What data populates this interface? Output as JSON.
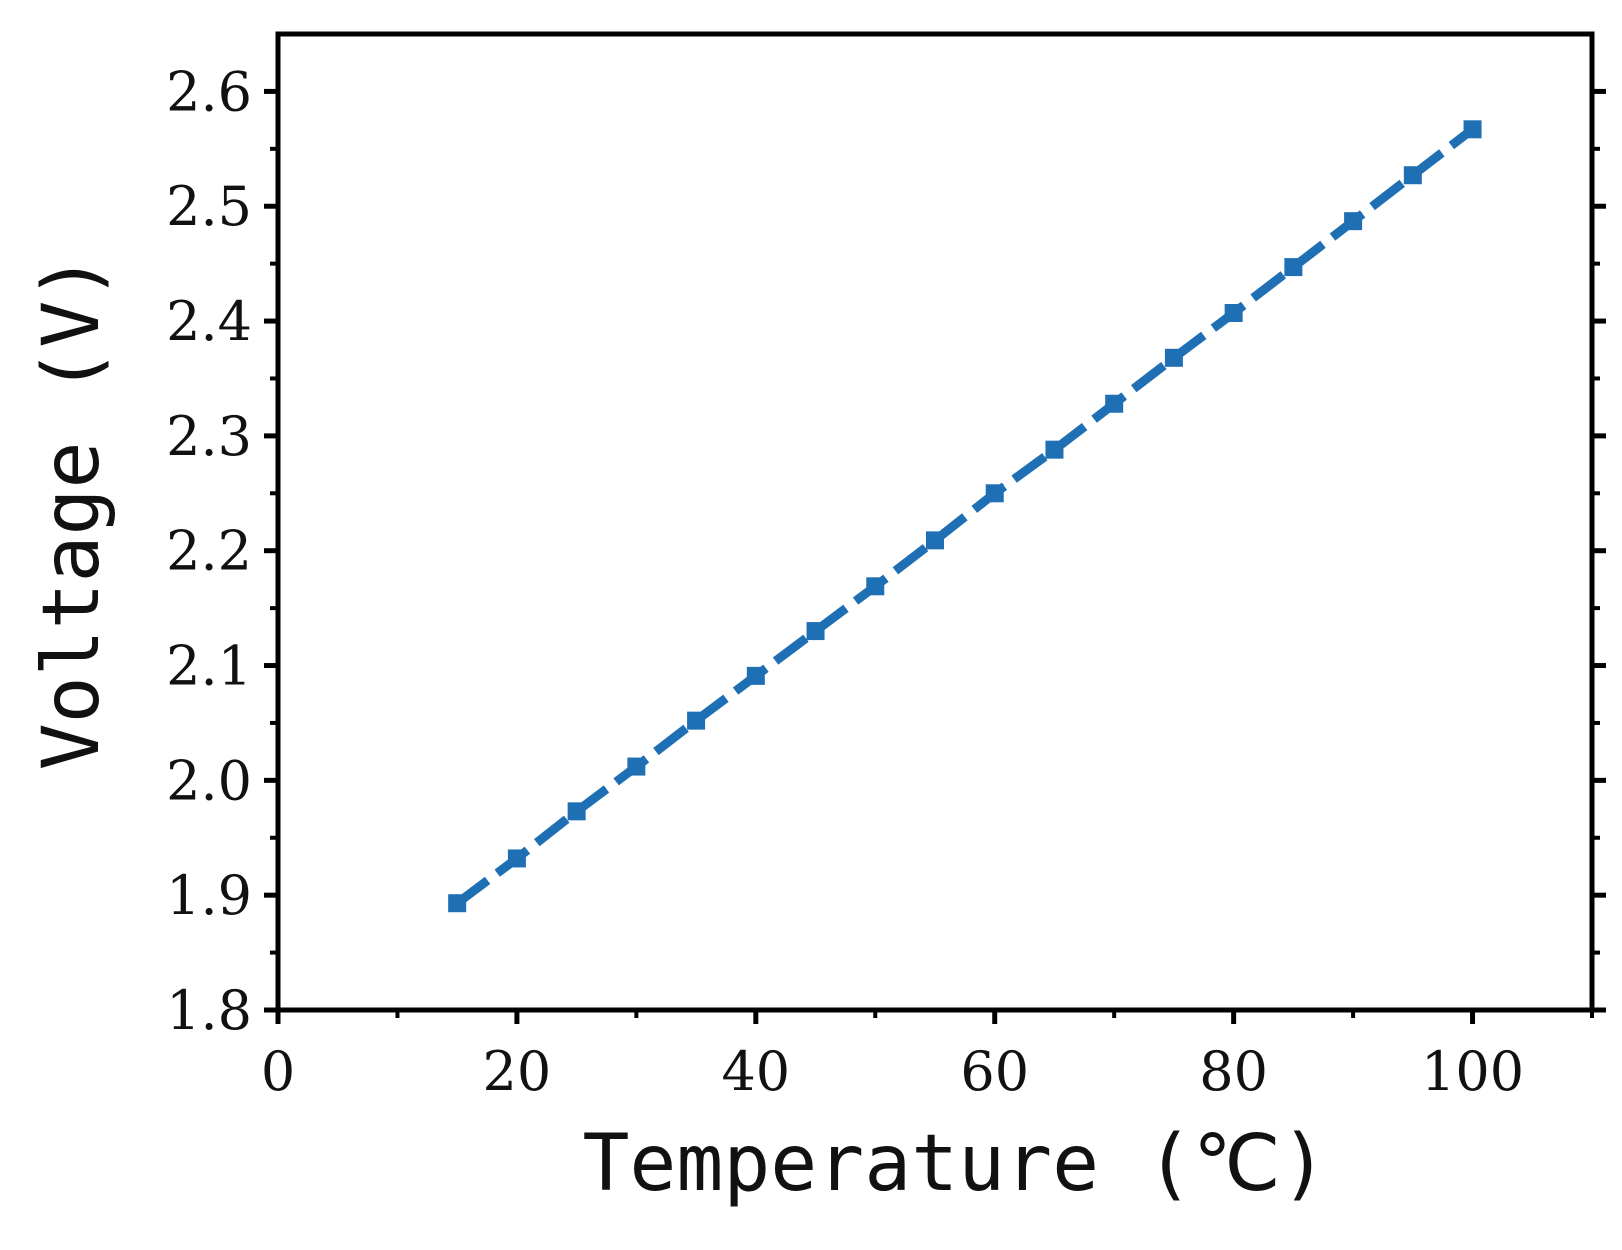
{
  "chart_data": {
    "type": "line",
    "title": "",
    "xlabel": "Temperature (℃)",
    "ylabel": "Voltage (V)",
    "xlim": [
      0,
      110
    ],
    "ylim": [
      1.8,
      2.65
    ],
    "xticks": [
      0,
      20,
      40,
      60,
      80,
      100
    ],
    "xtick_labels": [
      "0",
      "20",
      "40",
      "60",
      "80",
      "100"
    ],
    "yticks": [
      1.8,
      1.9,
      2.0,
      2.1,
      2.2,
      2.3,
      2.4,
      2.5,
      2.6
    ],
    "ytick_labels": [
      "1.8",
      "1.9",
      "2.0",
      "2.1",
      "2.2",
      "2.3",
      "2.4",
      "2.5",
      "2.6"
    ],
    "grid": false,
    "legend": "none",
    "series": [
      {
        "color": "#1f6fb4",
        "marker": "square",
        "x": [
          15,
          20,
          25,
          30,
          35,
          40,
          45,
          50,
          55,
          60,
          65,
          70,
          75,
          80,
          85,
          90,
          95,
          100
        ],
        "y": [
          1.893,
          1.932,
          1.973,
          2.012,
          2.052,
          2.091,
          2.13,
          2.169,
          2.209,
          2.25,
          2.288,
          2.328,
          2.368,
          2.407,
          2.447,
          2.487,
          2.527,
          2.567
        ]
      }
    ]
  }
}
